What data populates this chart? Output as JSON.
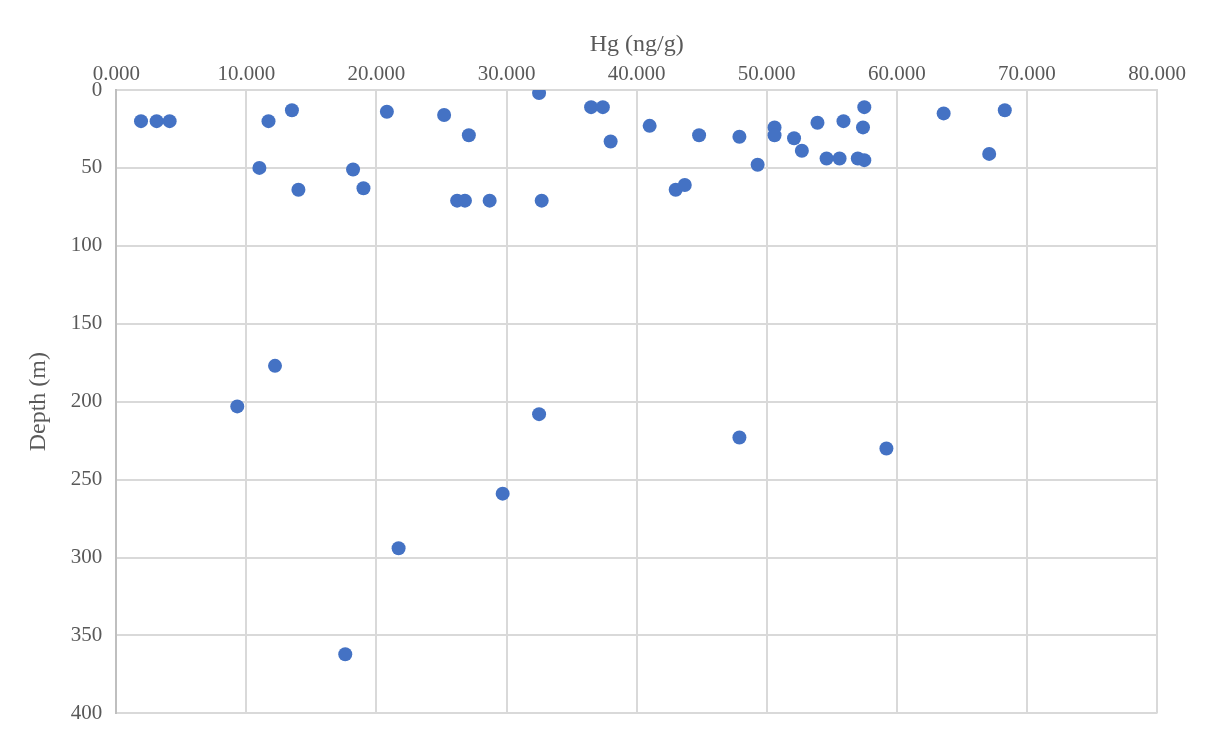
{
  "chart_data": {
    "type": "scatter",
    "xlabel": "Hg (ng/g)",
    "ylabel": "Depth (m)",
    "xlim": [
      0,
      80
    ],
    "xticks": [
      {
        "value": 0,
        "label": "0.000"
      },
      {
        "value": 10,
        "label": "10.000"
      },
      {
        "value": 20,
        "label": "20.000"
      },
      {
        "value": 30,
        "label": "30.000"
      },
      {
        "value": 40,
        "label": "40.000"
      },
      {
        "value": 50,
        "label": "50.000"
      },
      {
        "value": 60,
        "label": "60.000"
      },
      {
        "value": 70,
        "label": "70.000"
      },
      {
        "value": 80,
        "label": "80.000"
      }
    ],
    "ylim": [
      400,
      0
    ],
    "yticks": [
      0,
      50,
      100,
      150,
      200,
      250,
      300,
      350,
      400
    ],
    "grid": true,
    "legend": false,
    "marker": "circle",
    "series": [
      {
        "color": "#4472c4",
        "x": [
          1.9,
          3.1,
          4.1,
          11.7,
          13.5,
          20.8,
          25.2,
          27.1,
          11.0,
          18.2,
          19.0,
          14.0,
          26.2,
          26.8,
          28.7,
          32.7,
          32.5,
          36.5,
          37.4,
          38.0,
          41.0,
          43.0,
          43.7,
          44.8,
          47.9,
          50.6,
          50.6,
          49.3,
          52.1,
          52.7,
          53.9,
          54.6,
          55.6,
          55.9,
          57.0,
          57.5,
          57.5,
          57.4,
          63.6,
          67.1,
          68.3,
          12.2,
          9.3,
          32.5,
          47.9,
          59.2,
          29.7,
          21.7,
          17.6
        ],
        "values": [
          20,
          20,
          20,
          20,
          13,
          14,
          16,
          29,
          50,
          51,
          63,
          64,
          71,
          71,
          71,
          71,
          2,
          11,
          11,
          33,
          23,
          64,
          61,
          29,
          30,
          24,
          29,
          48,
          31,
          39,
          21,
          44,
          44,
          20,
          44,
          45,
          11,
          24,
          15,
          41,
          13,
          177,
          203,
          208,
          223,
          230,
          259,
          294,
          362
        ]
      }
    ]
  }
}
